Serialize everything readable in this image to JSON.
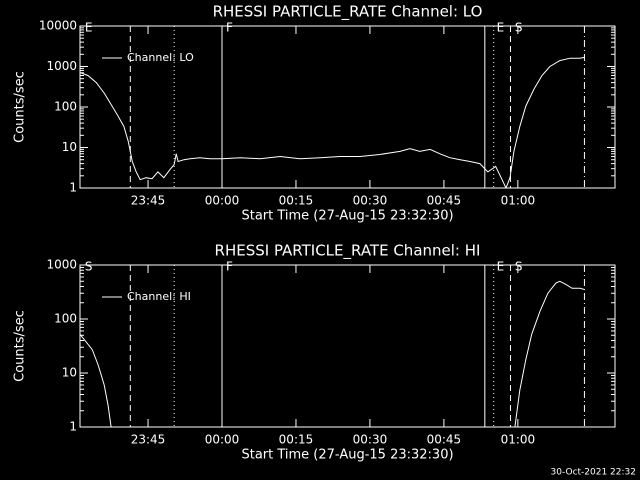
{
  "chart_data": [
    {
      "type": "line",
      "title": "RHESSI PARTICLE_RATE Channel: LO",
      "xlabel": "Start Time (27-Aug-15 23:32:30)",
      "ylabel": "Counts/sec",
      "log_y": true,
      "xlim": [
        -1.3,
        107.2
      ],
      "ylim": [
        1,
        10000
      ],
      "yticks": [
        1,
        10,
        100,
        1000,
        10000
      ],
      "xticks": [
        {
          "value": 12.5,
          "label": "23:45"
        },
        {
          "value": 27.5,
          "label": "00:00"
        },
        {
          "value": 42.5,
          "label": "00:15"
        },
        {
          "value": 57.5,
          "label": "00:30"
        },
        {
          "value": 72.5,
          "label": "00:45"
        },
        {
          "value": 87.5,
          "label": "01:00"
        }
      ],
      "legend": "upper left",
      "series": [
        {
          "name": "Channel: LO",
          "color": "#ffffff",
          "x": [
            -1.3,
            0.3,
            2.0,
            3.6,
            5.2,
            6.4,
            7.6,
            8.5,
            9.3,
            10.1,
            10.9,
            12.1,
            13.3,
            14.5,
            15.7,
            16.9,
            17.8,
            18.2,
            18.6,
            19.8,
            21.0,
            23.0,
            25.1,
            27.5,
            31.2,
            35.2,
            39.3,
            43.3,
            47.4,
            51.4,
            55.5,
            59.5,
            63.6,
            65.6,
            67.6,
            69.7,
            71.7,
            73.7,
            75.8,
            77.8,
            79.8,
            81.4,
            83.0,
            84.3,
            85.1,
            85.9,
            86.7,
            87.9,
            89.1,
            90.8,
            92.4,
            94.0,
            96.0,
            98.1,
            100.1,
            101.1
          ],
          "values": [
            708,
            600,
            400,
            220,
            105,
            60,
            33,
            14,
            4.5,
            2.5,
            1.6,
            1.8,
            1.7,
            2.5,
            1.8,
            2.8,
            3.8,
            7,
            4.5,
            5,
            5.3,
            5.6,
            5.3,
            5.3,
            5.6,
            5.3,
            6,
            5.3,
            5.6,
            6,
            6,
            6.7,
            8,
            9.4,
            8,
            9,
            7,
            5.6,
            5,
            4.5,
            4,
            2.5,
            3.4,
            1.6,
            1,
            1.8,
            8,
            33,
            105,
            280,
            600,
            1000,
            1400,
            1600,
            1600,
            1700
          ]
        }
      ],
      "markers": [
        {
          "x": 8.9,
          "style": "dashed"
        },
        {
          "x": 17.8,
          "style": "dotted"
        },
        {
          "x": 27.5,
          "style": "solid"
        },
        {
          "x": 80.8,
          "style": "solid"
        },
        {
          "x": 82.6,
          "style": "dotted"
        },
        {
          "x": 86.0,
          "style": "dashed"
        },
        {
          "x": 101.0,
          "style": "dashdot"
        }
      ],
      "annotations": [
        {
          "x": -0.3,
          "label": "E"
        },
        {
          "x": 28.3,
          "label": "F"
        },
        {
          "x": 83.2,
          "label": "E"
        },
        {
          "x": 86.9,
          "label": "S"
        }
      ]
    },
    {
      "type": "line",
      "title": "RHESSI PARTICLE_RATE Channel: HI",
      "xlabel": "Start Time (27-Aug-15 23:32:30)",
      "ylabel": "Counts/sec",
      "log_y": true,
      "xlim": [
        -1.3,
        107.2
      ],
      "ylim": [
        1,
        1000
      ],
      "yticks": [
        1,
        10,
        100,
        1000
      ],
      "xticks": [
        {
          "value": 12.5,
          "label": "23:45"
        },
        {
          "value": 27.5,
          "label": "00:00"
        },
        {
          "value": 42.5,
          "label": "00:15"
        },
        {
          "value": 57.5,
          "label": "00:30"
        },
        {
          "value": 72.5,
          "label": "00:45"
        },
        {
          "value": 87.5,
          "label": "01:00"
        }
      ],
      "legend": "upper left",
      "series": [
        {
          "name": "Channel: HI",
          "color": "#ffffff",
          "x": [
            -1.3,
            -0.1,
            1.2,
            2.4,
            3.6,
            4.4,
            5.0,
            50,
            86.9,
            87.9,
            89.1,
            90.3,
            92.0,
            93.6,
            95.2,
            96.0,
            97.2,
            98.5,
            100.1,
            101.1
          ],
          "values": [
            52,
            38,
            27,
            14,
            6,
            2.5,
            1,
            null,
            1,
            4.8,
            17.6,
            52,
            141,
            300,
            460,
            500,
            440,
            370,
            370,
            350
          ]
        }
      ],
      "markers": [
        {
          "x": 8.9,
          "style": "dashed"
        },
        {
          "x": 17.8,
          "style": "dotted"
        },
        {
          "x": 27.5,
          "style": "solid"
        },
        {
          "x": 80.8,
          "style": "solid"
        },
        {
          "x": 82.6,
          "style": "dotted"
        },
        {
          "x": 86.0,
          "style": "dashed"
        },
        {
          "x": 101.0,
          "style": "dashdot"
        }
      ],
      "annotations": [
        {
          "x": -0.3,
          "label": "S"
        },
        {
          "x": 28.3,
          "label": "F"
        },
        {
          "x": 83.2,
          "label": "E"
        },
        {
          "x": 86.9,
          "label": "S"
        }
      ]
    }
  ],
  "footer": "30-Oct-2021 22:32"
}
